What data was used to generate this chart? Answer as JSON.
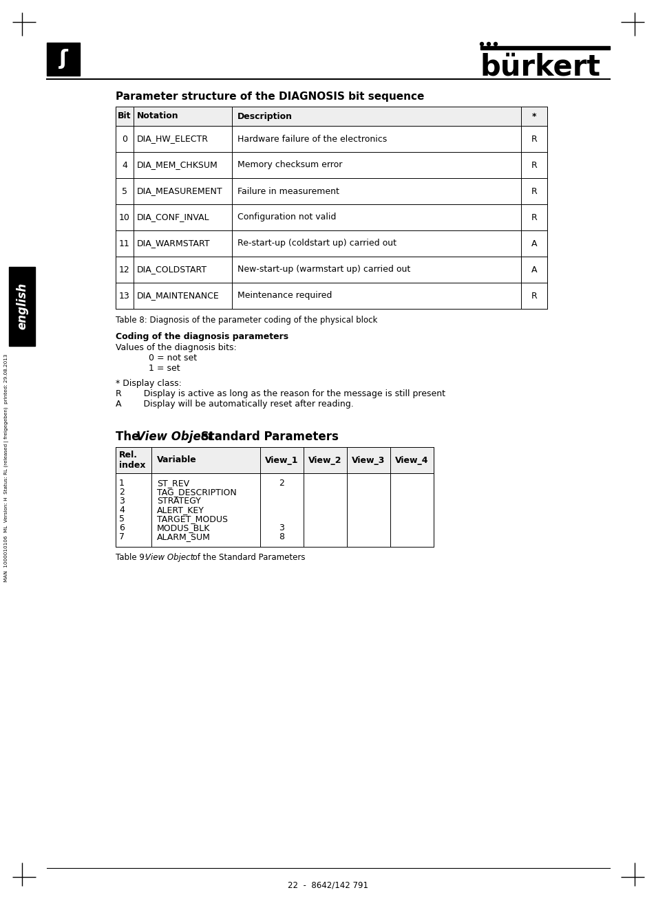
{
  "page_title": "Parameter structure of the DIAGNOSIS bit sequence",
  "table1_headers": [
    "Bit",
    "Notation",
    "Description",
    "*"
  ],
  "table1_rows": [
    [
      "0",
      "DIA_HW_ELECTR",
      "Hardware failure of the electronics",
      "R"
    ],
    [
      "4",
      "DIA_MEM_CHKSUM",
      "Memory checksum error",
      "R"
    ],
    [
      "5",
      "DIA_MEASUREMENT",
      "Failure in measurement",
      "R"
    ],
    [
      "10",
      "DIA_CONF_INVAL",
      "Configuration not valid",
      "R"
    ],
    [
      "11",
      "DIA_WARMSTART",
      "Re-start-up (coldstart up) carried out",
      "A"
    ],
    [
      "12",
      "DIA_COLDSTART",
      "New-start-up (warmstart up) carried out",
      "A"
    ],
    [
      "13",
      "DIA_MAINTENANCE",
      "Meintenance required",
      "R"
    ]
  ],
  "table1_caption": "Table 8: Diagnosis of the parameter coding of the physical block",
  "coding_title": "Coding of the diagnosis parameters",
  "coding_line1": "Values of the diagnosis bits:",
  "coding_line2": "0 = not set",
  "coding_line3": "1 = set",
  "display_line0": "* Display class:",
  "display_line1": "R        Display is active as long as the reason for the message is still present",
  "display_line2": "A        Display will be automatically reset after reading.",
  "sec2_pre": "The ",
  "sec2_italic": "View Object",
  "sec2_post": " Standard Parameters",
  "table2_headers": [
    "Rel.\nindex",
    "Variable",
    "View_1",
    "View_2",
    "View_3",
    "View_4"
  ],
  "table2_indices": [
    "1",
    "2",
    "3",
    "4",
    "5",
    "6",
    "7"
  ],
  "table2_variables": [
    "ST_REV",
    "TAG_DESCRIPTION",
    "STRATEGY",
    "ALERT_KEY",
    "TARGET_MODUS",
    "MODUS_BLK",
    "ALARM_SUM"
  ],
  "table2_view1": {
    "0": "2",
    "5": "3",
    "6": "8"
  },
  "table2_caption_pre": "Table 9: ",
  "table2_caption_italic": "View Object",
  "table2_caption_post": " of the Standard Parameters",
  "footer_line": "22  -  8642/142 791",
  "side_text": "MAN  1000010106  ML  Version: H  Status: RL (released | freigegeben)  printed: 29.08.2013",
  "bg_color": "#ffffff",
  "text_color": "#000000"
}
